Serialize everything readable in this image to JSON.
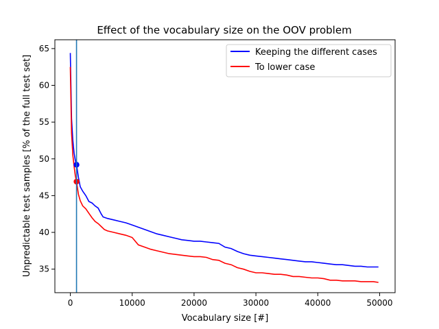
{
  "chart_data": {
    "type": "line",
    "title": "Effect of the vocabulary size on the OOV problem",
    "xlabel": "Vocabulary size [#]",
    "ylabel": "Unpredictable test samples [% of the full test set]",
    "xlim": [
      -2500,
      52500
    ],
    "ylim": [
      31.8,
      66.2
    ],
    "xticks": [
      0,
      10000,
      20000,
      30000,
      40000,
      50000
    ],
    "xtick_labels": [
      "0",
      "10000",
      "20000",
      "30000",
      "40000",
      "50000"
    ],
    "yticks": [
      35,
      40,
      45,
      50,
      55,
      60,
      65
    ],
    "ytick_labels": [
      "35",
      "40",
      "45",
      "50",
      "55",
      "60",
      "65"
    ],
    "grid": false,
    "legend_position": "top-right",
    "vline_x": 1000,
    "vline_color": "#1f77b4",
    "series": [
      {
        "name": "Keeping the different cases",
        "color": "#0000ff",
        "x": [
          0,
          100,
          200,
          400,
          600,
          800,
          1000,
          1300,
          1600,
          2000,
          2500,
          3000,
          3500,
          4000,
          4500,
          5000,
          5300,
          6000,
          7000,
          8000,
          9000,
          10000,
          11000,
          12000,
          13000,
          14000,
          15000,
          16000,
          17000,
          18000,
          19000,
          20000,
          21000,
          22000,
          23000,
          24000,
          25000,
          26000,
          27000,
          28000,
          29000,
          30000,
          31000,
          32000,
          33000,
          34000,
          35000,
          36000,
          37000,
          38000,
          39000,
          40000,
          41000,
          42000,
          43000,
          44000,
          45000,
          46000,
          47000,
          48000,
          49000,
          49800
        ],
        "y": [
          64.4,
          60.0,
          55.5,
          52.5,
          50.8,
          49.8,
          49.2,
          47.5,
          46.2,
          45.6,
          45.0,
          44.2,
          44.0,
          43.6,
          43.3,
          42.5,
          42.1,
          41.9,
          41.7,
          41.5,
          41.3,
          41.0,
          40.7,
          40.4,
          40.1,
          39.8,
          39.6,
          39.4,
          39.2,
          39.0,
          38.9,
          38.8,
          38.8,
          38.7,
          38.6,
          38.5,
          38.0,
          37.8,
          37.4,
          37.1,
          36.9,
          36.8,
          36.7,
          36.6,
          36.5,
          36.4,
          36.3,
          36.2,
          36.1,
          36.0,
          36.0,
          35.9,
          35.8,
          35.7,
          35.6,
          35.6,
          35.5,
          35.4,
          35.4,
          35.3,
          35.3,
          35.3
        ],
        "marker_x": 1000,
        "marker_y": 49.2
      },
      {
        "name": "To lower case",
        "color": "#ff0000",
        "x": [
          0,
          100,
          200,
          400,
          600,
          800,
          1000,
          1300,
          1600,
          2000,
          2500,
          3000,
          3500,
          4000,
          4500,
          5000,
          5500,
          6000,
          7000,
          8000,
          9000,
          10000,
          11000,
          12000,
          13000,
          14000,
          15000,
          16000,
          17000,
          18000,
          19000,
          20000,
          21000,
          22000,
          23000,
          24000,
          25000,
          26000,
          27000,
          28000,
          29000,
          30000,
          31000,
          32000,
          33000,
          34000,
          35000,
          36000,
          37000,
          38000,
          39000,
          40000,
          41000,
          42000,
          43000,
          44000,
          45000,
          46000,
          47000,
          48000,
          49000,
          49800
        ],
        "y": [
          62.5,
          58.0,
          53.5,
          50.5,
          49.0,
          47.7,
          46.9,
          45.2,
          44.3,
          43.6,
          43.2,
          42.6,
          42.0,
          41.5,
          41.2,
          40.8,
          40.4,
          40.2,
          40.0,
          39.8,
          39.6,
          39.3,
          38.3,
          38.0,
          37.7,
          37.5,
          37.3,
          37.1,
          37.0,
          36.9,
          36.8,
          36.7,
          36.7,
          36.6,
          36.3,
          36.2,
          35.8,
          35.6,
          35.2,
          35.0,
          34.7,
          34.5,
          34.5,
          34.4,
          34.3,
          34.3,
          34.2,
          34.0,
          34.0,
          33.9,
          33.8,
          33.8,
          33.7,
          33.5,
          33.5,
          33.4,
          33.4,
          33.4,
          33.3,
          33.3,
          33.3,
          33.2
        ],
        "marker_x": 1000,
        "marker_y": 46.9
      }
    ]
  }
}
